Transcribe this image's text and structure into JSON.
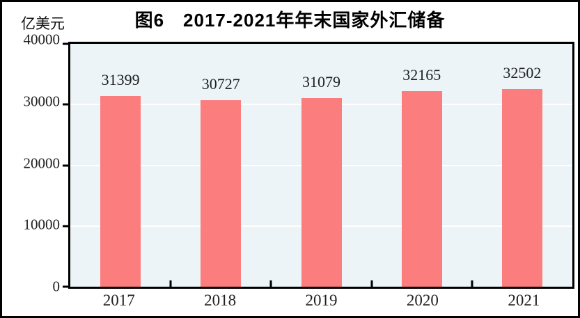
{
  "figure": {
    "title": "图6　2017-2021年年末国家外汇储备",
    "unit_label": "亿美元"
  },
  "chart_data": {
    "type": "bar",
    "title": "图6　2017-2021年年末国家外汇储备",
    "unit": "亿美元",
    "ylabel": "亿美元",
    "xlabel": "",
    "categories": [
      "2017",
      "2018",
      "2019",
      "2020",
      "2021"
    ],
    "values": [
      31399,
      30727,
      31079,
      32165,
      32502
    ],
    "ylim": [
      0,
      40000
    ],
    "y_ticks": [
      40000,
      30000,
      20000,
      10000,
      0
    ],
    "grid": "horizontal",
    "legend_position": "none",
    "colors": {
      "bar": "#fc7d7d",
      "plot_background": "#ecf4f7",
      "axis": "#000000",
      "gridline": "#ffffff",
      "text": "#1f1f1f"
    }
  }
}
